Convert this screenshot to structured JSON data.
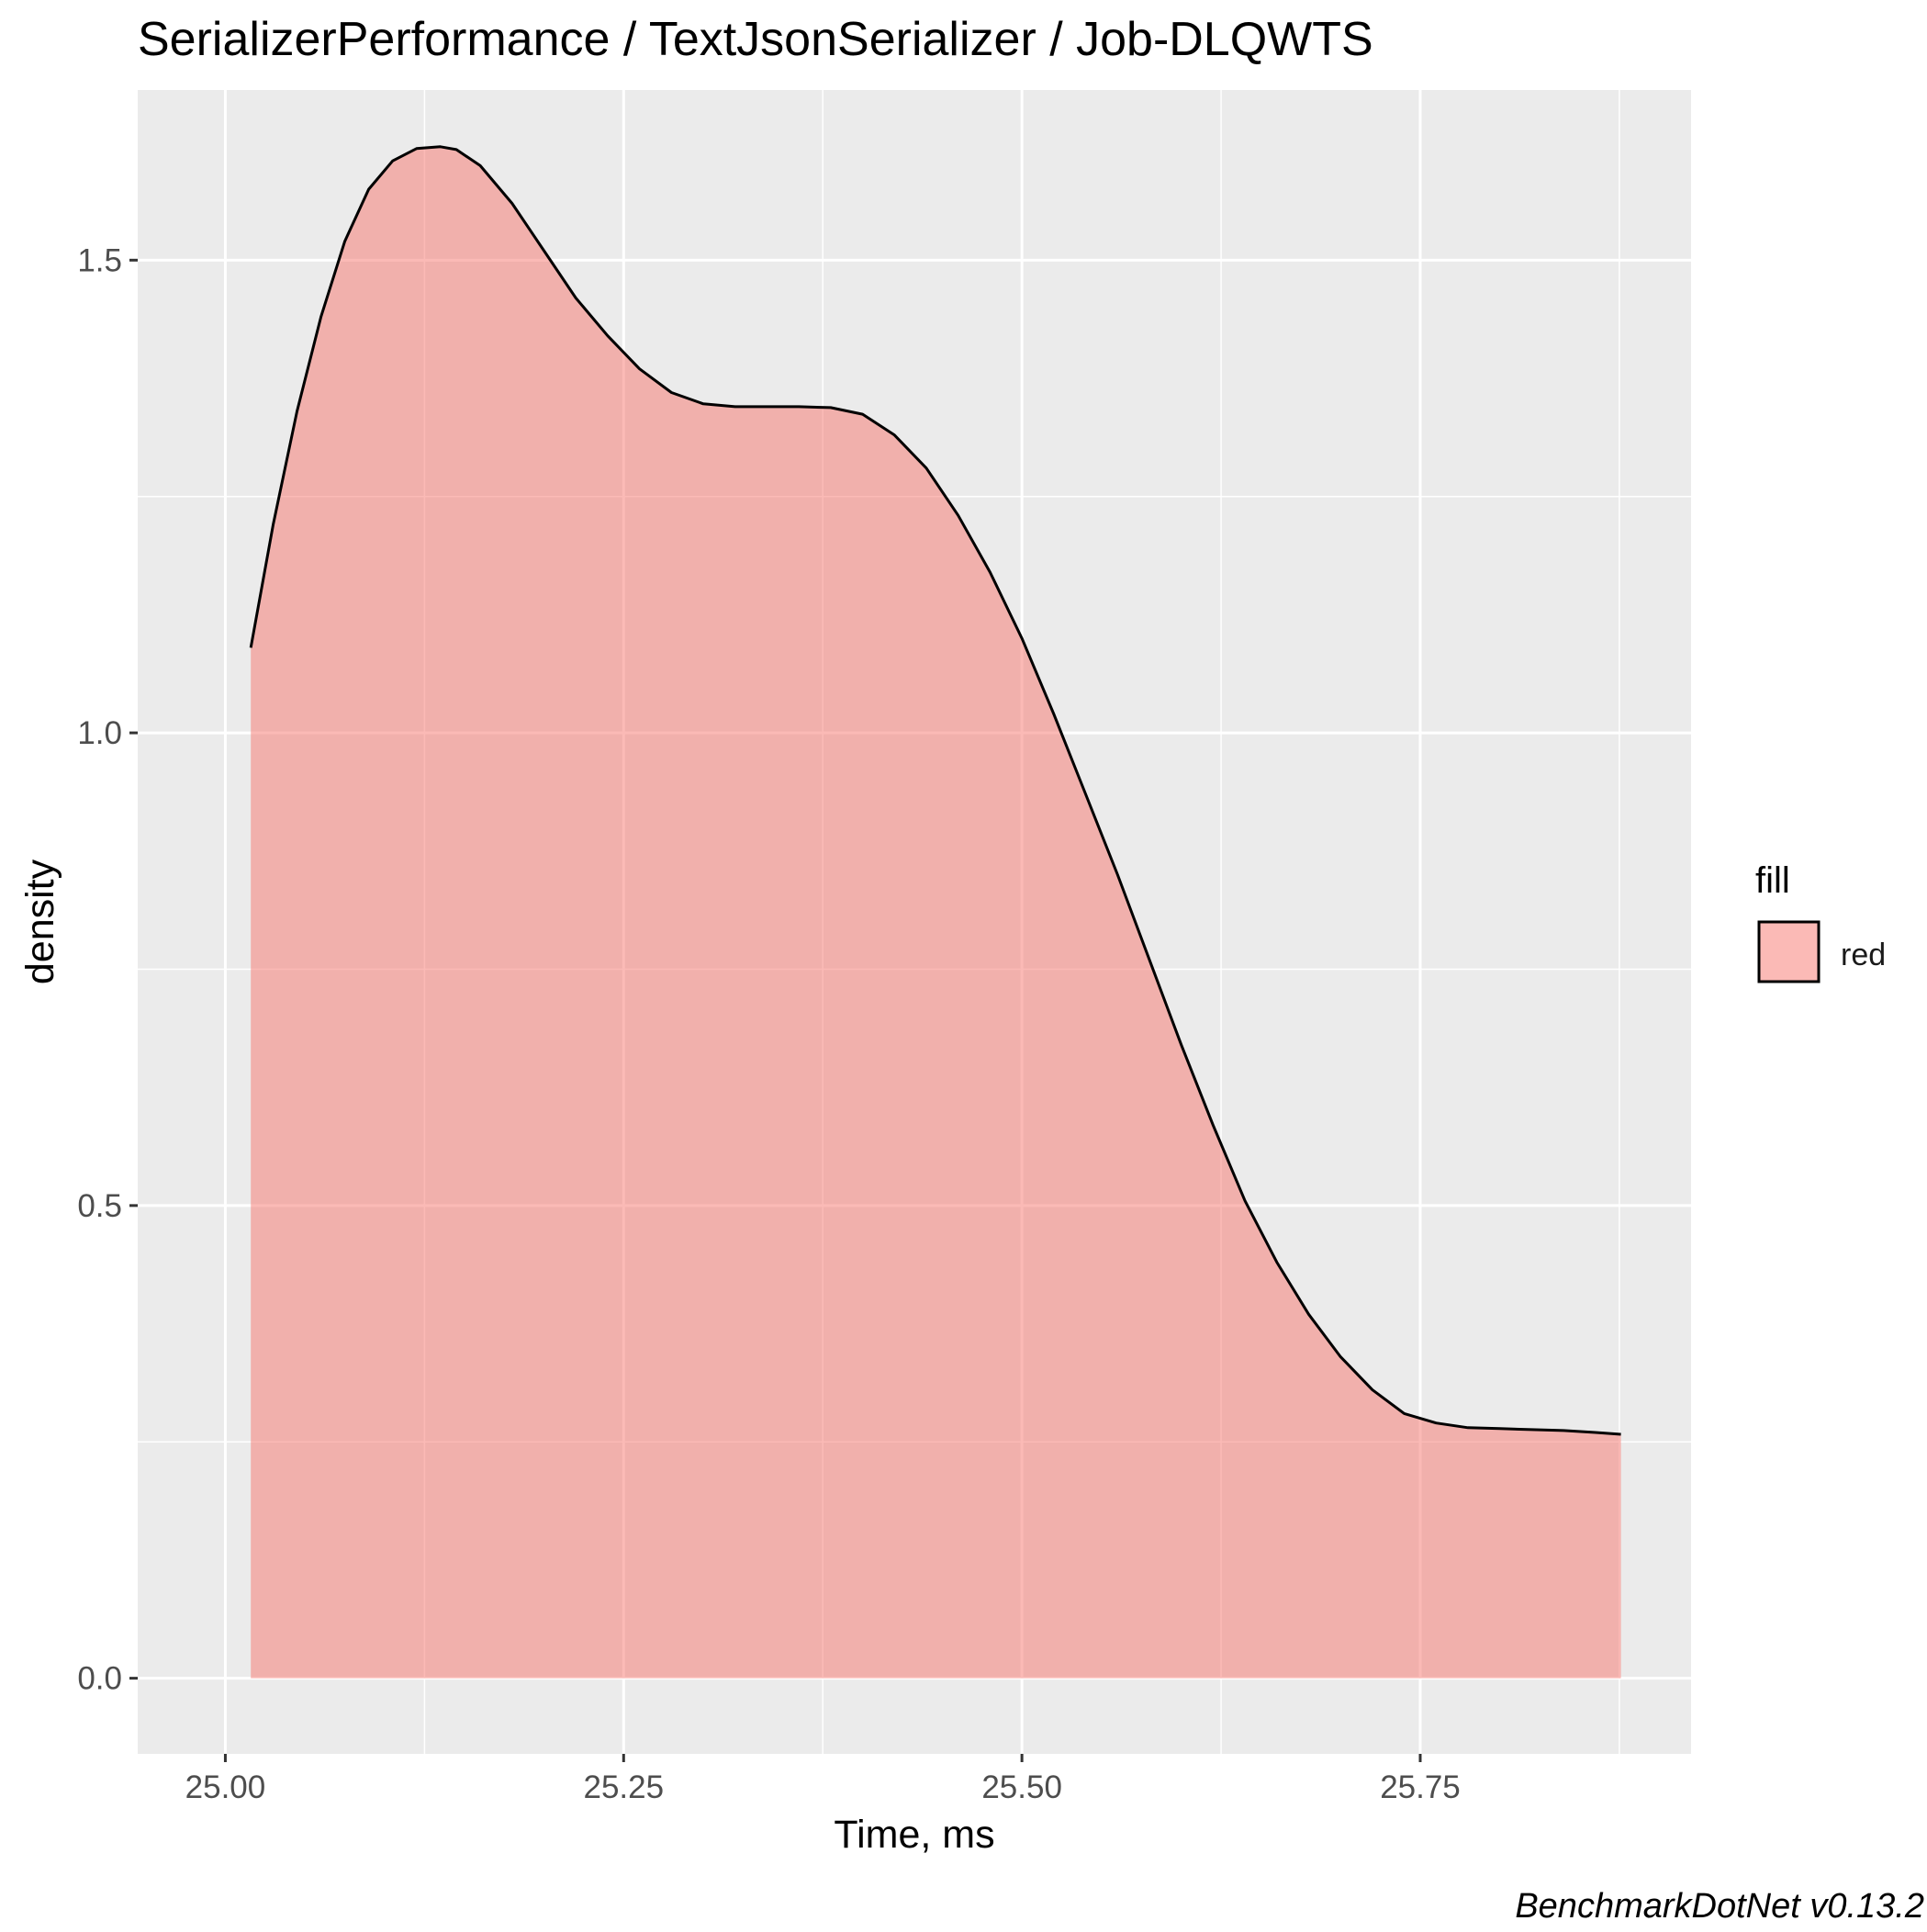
{
  "chart_data": {
    "type": "area",
    "title": "SerializerPerformance / TextJsonSerializer / Job-DLQWTS",
    "xlabel": "Time, ms",
    "ylabel": "density",
    "caption": "BenchmarkDotNet v0.13.2",
    "xlim": [
      24.945,
      25.92
    ],
    "ylim": [
      -0.08,
      1.68
    ],
    "x_ticks": [
      {
        "value": 25.0,
        "label": "25.00"
      },
      {
        "value": 25.25,
        "label": "25.25"
      },
      {
        "value": 25.5,
        "label": "25.50"
      },
      {
        "value": 25.75,
        "label": "25.75"
      }
    ],
    "y_ticks": [
      {
        "value": 0.0,
        "label": "0.0"
      },
      {
        "value": 0.5,
        "label": "0.5"
      },
      {
        "value": 1.0,
        "label": "1.0"
      },
      {
        "value": 1.5,
        "label": "1.5"
      }
    ],
    "grid": true,
    "legend": {
      "title": "fill",
      "position": "right",
      "entries": [
        {
          "label": "red",
          "color": "#F8766D"
        }
      ]
    },
    "series": [
      {
        "name": "red",
        "fill_color": "#F8766D",
        "fill_opacity": 0.5,
        "line_color": "#000000",
        "x": [
          25.016,
          25.03,
          25.045,
          25.06,
          25.075,
          25.09,
          25.105,
          25.12,
          25.135,
          25.145,
          25.16,
          25.18,
          25.2,
          25.22,
          25.24,
          25.26,
          25.28,
          25.3,
          25.32,
          25.34,
          25.36,
          25.38,
          25.4,
          25.42,
          25.44,
          25.46,
          25.48,
          25.5,
          25.52,
          25.54,
          25.56,
          25.58,
          25.6,
          25.62,
          25.64,
          25.66,
          25.68,
          25.7,
          25.72,
          25.74,
          25.76,
          25.78,
          25.8,
          25.82,
          25.84,
          25.86,
          25.876
        ],
        "y": [
          1.09,
          1.22,
          1.34,
          1.44,
          1.52,
          1.575,
          1.605,
          1.618,
          1.62,
          1.617,
          1.6,
          1.56,
          1.51,
          1.46,
          1.42,
          1.385,
          1.36,
          1.348,
          1.345,
          1.345,
          1.345,
          1.344,
          1.337,
          1.315,
          1.28,
          1.23,
          1.17,
          1.1,
          1.02,
          0.935,
          0.85,
          0.76,
          0.67,
          0.585,
          0.505,
          0.44,
          0.385,
          0.34,
          0.305,
          0.28,
          0.27,
          0.265,
          0.264,
          0.263,
          0.262,
          0.26,
          0.258
        ]
      }
    ]
  }
}
